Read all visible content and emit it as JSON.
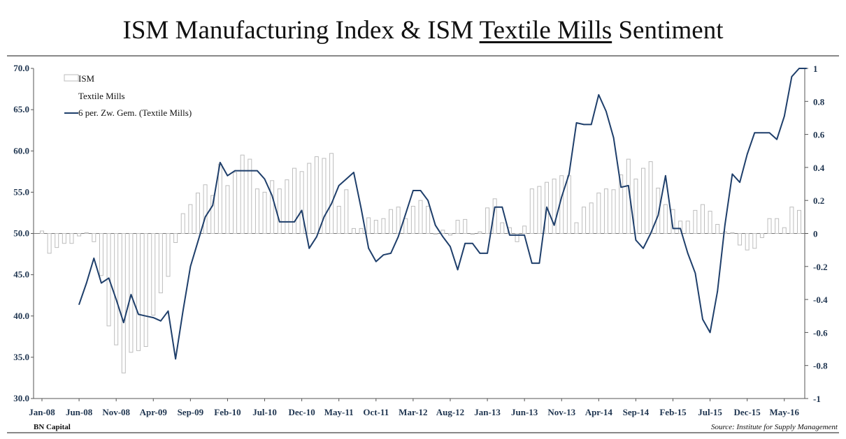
{
  "title": {
    "prefix": "ISM Manufacturing Index & ISM ",
    "underlined": "Textile Mills",
    "suffix": " Sentiment"
  },
  "footer": {
    "left": "BN Capital",
    "right": "Source: Institute for Supply Management"
  },
  "colors": {
    "line": "#1f3f6b",
    "bar_fill": "#ffffff",
    "bar_stroke": "#bdbdbd",
    "axis": "#555555",
    "tick_text": "#1f3550"
  },
  "chart_data": {
    "type": "bar+line",
    "title": "ISM Manufacturing Index & ISM Textile Mills Sentiment",
    "x_ticks": [
      "Jan-08",
      "Jun-08",
      "Nov-08",
      "Apr-09",
      "Sep-09",
      "Feb-10",
      "Jul-10",
      "Dec-10",
      "May-11",
      "Oct-11",
      "Mar-12",
      "Aug-12",
      "Jan-13",
      "Jun-13",
      "Nov-13",
      "Apr-14",
      "Sep-14",
      "Feb-15",
      "Jul-15",
      "Dec-15",
      "May-16"
    ],
    "months_start": "Jan-08",
    "y_left": {
      "min": 30,
      "max": 70,
      "baseline": 50,
      "ticks": [
        "30.0",
        "35.0",
        "40.0",
        "45.0",
        "50.0",
        "55.0",
        "60.0",
        "65.0",
        "70.0"
      ]
    },
    "y_right": {
      "min": -1,
      "max": 1,
      "ticks": [
        "-1",
        "-0.8",
        "-0.6",
        "-0.4",
        "-0.2",
        "0",
        "0.2",
        "0.4",
        "0.6",
        "0.8",
        "1"
      ]
    },
    "legend": [
      {
        "label": "ISM",
        "kind": "bar"
      },
      {
        "label": "Textile Mills",
        "kind": "none"
      },
      {
        "label": "6 per. Zw. Gem. (Textile Mills)",
        "kind": "line"
      }
    ],
    "series": [
      {
        "name": "ISM",
        "axis": "left",
        "kind": "bar",
        "values": [
          50.3,
          47.6,
          48.3,
          48.8,
          48.8,
          49.7,
          50.1,
          49.0,
          44.9,
          38.8,
          36.5,
          33.1,
          35.6,
          35.8,
          36.3,
          40.1,
          42.8,
          44.8,
          48.9,
          52.4,
          53.5,
          54.9,
          55.9,
          54.6,
          58.4,
          55.8,
          57.4,
          59.5,
          59.0,
          55.4,
          55.0,
          56.4,
          55.4,
          56.5,
          57.9,
          57.5,
          58.5,
          59.3,
          59.1,
          59.7,
          53.3,
          55.3,
          50.6,
          50.6,
          51.9,
          51.6,
          51.8,
          52.9,
          53.2,
          51.8,
          53.3,
          54.0,
          53.3,
          49.9,
          50.4,
          49.8,
          51.6,
          51.7,
          49.9,
          50.2,
          53.1,
          54.2,
          51.3,
          50.7,
          49.0,
          50.9,
          55.4,
          55.7,
          56.2,
          56.6,
          57.0,
          57.0,
          51.3,
          53.2,
          53.7,
          54.9,
          55.4,
          55.3,
          57.1,
          59.0,
          56.6,
          57.9,
          58.7,
          55.5,
          53.5,
          52.9,
          51.5,
          51.5,
          52.8,
          53.5,
          52.7,
          51.1,
          50.2,
          50.1,
          48.6,
          48.0,
          48.2,
          49.5,
          51.8,
          51.8,
          50.7,
          53.2,
          52.8
        ]
      },
      {
        "name": "6 per. Zw. Gem. (Textile Mills)",
        "axis": "right",
        "kind": "line",
        "start_index": 5,
        "values": [
          -0.43,
          -0.3,
          -0.15,
          -0.3,
          -0.27,
          -0.4,
          -0.54,
          -0.37,
          -0.49,
          -0.5,
          -0.51,
          -0.53,
          -0.47,
          -0.76,
          -0.47,
          -0.2,
          -0.05,
          0.1,
          0.17,
          0.43,
          0.35,
          0.38,
          0.38,
          0.38,
          0.38,
          0.33,
          0.23,
          0.07,
          0.07,
          0.07,
          0.14,
          -0.09,
          -0.02,
          0.1,
          0.18,
          0.29,
          0.33,
          0.37,
          0.15,
          -0.09,
          -0.17,
          -0.13,
          -0.12,
          -0.02,
          0.12,
          0.26,
          0.26,
          0.2,
          0.05,
          -0.02,
          -0.08,
          -0.22,
          -0.06,
          -0.06,
          -0.12,
          -0.12,
          0.16,
          0.16,
          -0.01,
          -0.01,
          -0.01,
          -0.18,
          -0.18,
          0.16,
          0.05,
          0.22,
          0.36,
          0.67,
          0.66,
          0.66,
          0.84,
          0.74,
          0.58,
          0.28,
          0.29,
          -0.04,
          -0.09,
          0.0,
          0.11,
          0.35,
          0.03,
          0.03,
          -0.12,
          -0.24,
          -0.52,
          -0.6,
          -0.35,
          0.05,
          0.36,
          0.31,
          0.48,
          0.61,
          0.61,
          0.61,
          0.57,
          0.71,
          0.95,
          1.0,
          1.0
        ]
      }
    ]
  }
}
